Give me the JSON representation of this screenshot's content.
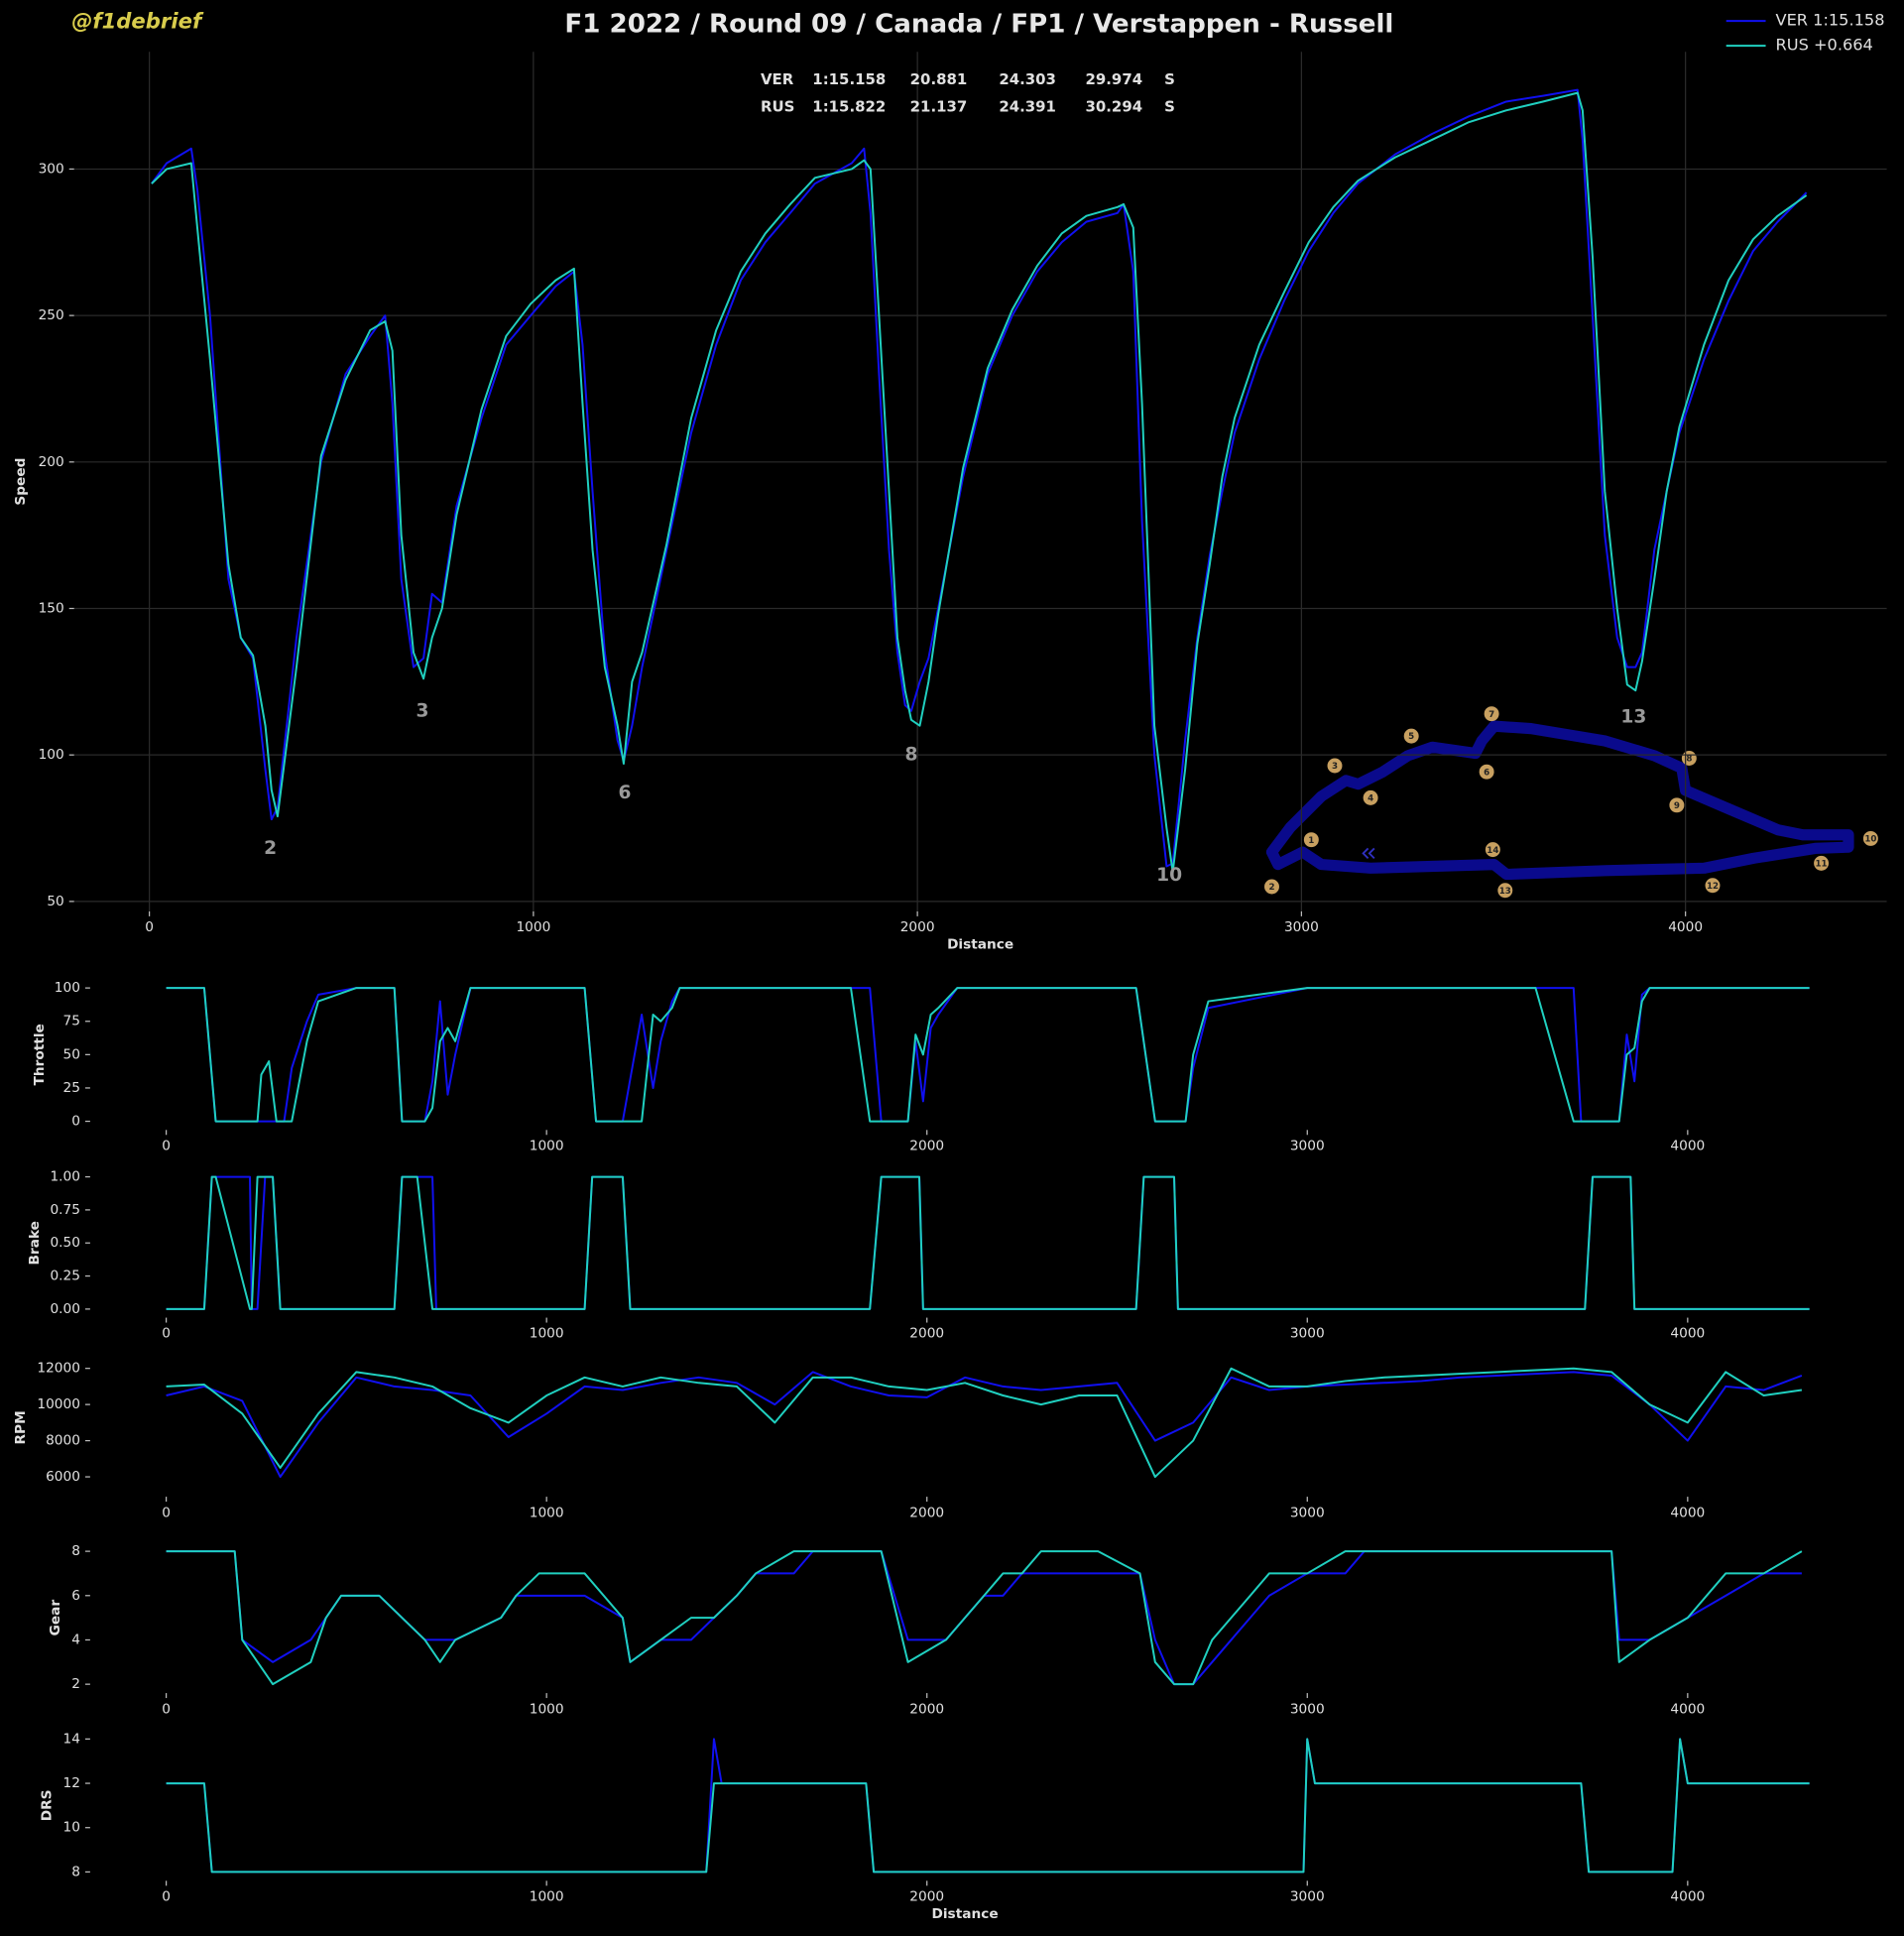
{
  "header": {
    "watermark": "@f1debrief",
    "title": "F1 2022 / Round 09 / Canada / FP1 / Verstappen - Russell"
  },
  "sector_table": {
    "rows": [
      [
        "VER",
        "1:15.158",
        "20.881",
        "24.303",
        "29.974",
        "S"
      ],
      [
        "RUS",
        "1:15.822",
        "21.137",
        "24.391",
        "30.294",
        "S"
      ]
    ]
  },
  "track_map": {
    "corners": [
      "1",
      "2",
      "3",
      "4",
      "5",
      "6",
      "7",
      "8",
      "9",
      "10",
      "11",
      "12",
      "13",
      "14"
    ]
  },
  "chart_data": [
    {
      "type": "line",
      "ylabel": "Speed",
      "xlabel": "Distance",
      "legend": "upper right",
      "grid": true,
      "xlim": [
        -196,
        4524
      ],
      "ylim": [
        46.6,
        340
      ],
      "xticks": [
        0,
        1000,
        2000,
        3000,
        4000
      ],
      "yticks": [
        50,
        100,
        150,
        200,
        250,
        300
      ],
      "x": [
        6,
        45,
        109,
        125,
        158,
        206,
        238,
        270,
        302,
        318,
        334,
        383,
        447,
        511,
        575,
        614,
        633,
        656,
        688,
        714,
        736,
        762,
        800,
        865,
        929,
        993,
        1058,
        1106,
        1128,
        1154,
        1186,
        1219,
        1235,
        1257,
        1283,
        1347,
        1411,
        1476,
        1540,
        1604,
        1669,
        1733,
        1829,
        1861,
        1878,
        1900,
        1926,
        1948,
        1968,
        1984,
        2006,
        2029,
        2054,
        2119,
        2183,
        2247,
        2312,
        2376,
        2440,
        2521,
        2537,
        2562,
        2585,
        2617,
        2649,
        2665,
        2697,
        2729,
        2761,
        2794,
        2826,
        2890,
        2955,
        3019,
        3083,
        3147,
        3244,
        3340,
        3436,
        3533,
        3629,
        3719,
        3732,
        3758,
        3790,
        3822,
        3848,
        3870,
        3887,
        3919,
        3951,
        3984,
        4048,
        4112,
        4176,
        4240,
        4315
      ],
      "series": [
        {
          "name": "VER 1:15.158",
          "color": "#1010f0",
          "values": [
            295,
            302,
            307,
            293,
            250,
            160,
            140,
            133,
            95,
            78,
            82,
            140,
            200,
            230,
            243,
            250,
            220,
            160,
            130,
            133,
            155,
            152,
            185,
            215,
            240,
            250,
            260,
            265,
            240,
            190,
            135,
            105,
            98,
            110,
            130,
            170,
            210,
            240,
            262,
            275,
            285,
            295,
            302,
            307,
            285,
            230,
            170,
            135,
            117,
            115,
            125,
            133,
            150,
            195,
            230,
            250,
            265,
            275,
            282,
            285,
            288,
            265,
            180,
            100,
            62,
            63,
            105,
            140,
            168,
            190,
            210,
            235,
            255,
            272,
            285,
            295,
            305,
            312,
            318,
            323,
            325,
            327,
            310,
            250,
            175,
            140,
            130,
            130,
            135,
            170,
            190,
            210,
            235,
            255,
            272,
            282,
            292
          ]
        },
        {
          "name": "RUS +0.664",
          "color": "#20d0c0",
          "values": [
            295,
            300,
            302,
            280,
            235,
            165,
            140,
            134,
            110,
            88,
            79,
            130,
            202,
            228,
            245,
            248,
            238,
            175,
            135,
            126,
            140,
            150,
            182,
            218,
            243,
            254,
            262,
            266,
            220,
            170,
            130,
            110,
            97,
            125,
            135,
            172,
            215,
            245,
            265,
            278,
            288,
            297,
            300,
            303,
            300,
            250,
            190,
            140,
            122,
            112,
            110,
            125,
            148,
            198,
            232,
            252,
            267,
            278,
            284,
            287,
            288,
            280,
            220,
            110,
            75,
            60,
            95,
            138,
            165,
            195,
            215,
            240,
            258,
            275,
            287,
            296,
            304,
            310,
            316,
            320,
            323,
            326,
            320,
            270,
            190,
            150,
            124,
            122,
            132,
            160,
            190,
            212,
            240,
            262,
            276,
            284,
            291
          ]
        }
      ],
      "annotations": [
        {
          "text": "2",
          "x": 315,
          "y": 68
        },
        {
          "text": "3",
          "x": 711,
          "y": 115
        },
        {
          "text": "6",
          "x": 1238,
          "y": 87
        },
        {
          "text": "8",
          "x": 1984,
          "y": 100
        },
        {
          "text": "10",
          "x": 2656,
          "y": 59
        },
        {
          "text": "13",
          "x": 3865,
          "y": 113
        }
      ]
    },
    {
      "type": "line",
      "ylabel": "Throttle",
      "xlim": [
        -200,
        4400
      ],
      "ylim": [
        -6.5,
        106.5
      ],
      "xticks": [
        0,
        1000,
        2000,
        3000,
        4000
      ],
      "yticks": [
        0,
        25,
        50,
        75,
        100
      ],
      "x": [
        0,
        100,
        130,
        180,
        240,
        250,
        270,
        290,
        310,
        330,
        370,
        400,
        500,
        600,
        620,
        680,
        700,
        720,
        740,
        760,
        800,
        1000,
        1100,
        1130,
        1200,
        1250,
        1280,
        1300,
        1330,
        1350,
        1400,
        1500,
        1800,
        1850,
        1880,
        1950,
        1970,
        1990,
        2010,
        2030,
        2080,
        2100,
        2500,
        2550,
        2600,
        2680,
        2700,
        2740,
        3000,
        3600,
        3700,
        3720,
        3820,
        3840,
        3860,
        3880,
        3900,
        4000,
        4320
      ],
      "series": [
        {
          "name": "VER 1:15.158",
          "color": "#1010f0",
          "values": [
            100,
            100,
            0,
            0,
            0,
            0,
            0,
            0,
            0,
            40,
            75,
            95,
            100,
            100,
            0,
            0,
            30,
            90,
            20,
            50,
            100,
            100,
            100,
            0,
            0,
            80,
            25,
            60,
            90,
            100,
            100,
            100,
            100,
            100,
            0,
            0,
            60,
            15,
            70,
            80,
            100,
            100,
            100,
            100,
            0,
            0,
            40,
            85,
            100,
            100,
            100,
            0,
            0,
            65,
            30,
            95,
            100,
            100,
            100
          ]
        },
        {
          "name": "RUS +0.664",
          "color": "#20d0c0",
          "values": [
            100,
            100,
            0,
            0,
            0,
            35,
            45,
            0,
            0,
            0,
            60,
            90,
            100,
            100,
            0,
            0,
            10,
            60,
            70,
            60,
            100,
            100,
            100,
            0,
            0,
            0,
            80,
            75,
            85,
            100,
            100,
            100,
            100,
            0,
            0,
            0,
            65,
            50,
            80,
            85,
            100,
            100,
            100,
            100,
            0,
            0,
            50,
            90,
            100,
            100,
            0,
            0,
            0,
            50,
            55,
            90,
            100,
            100,
            100
          ]
        }
      ]
    },
    {
      "type": "line",
      "ylabel": "Brake",
      "xlim": [
        -200,
        4400
      ],
      "ylim": [
        -0.065,
        1.065
      ],
      "xticks": [
        0,
        1000,
        2000,
        3000,
        4000
      ],
      "yticks": [
        {
          "value": 0,
          "label": "0.00"
        },
        {
          "value": 0.25,
          "label": "0.25"
        },
        {
          "value": 0.5,
          "label": "0.50"
        },
        {
          "value": 0.75,
          "label": "0.75"
        },
        {
          "value": 1,
          "label": "1.00"
        }
      ],
      "x": [
        0,
        100,
        120,
        130,
        220,
        225,
        240,
        260,
        280,
        300,
        310,
        600,
        620,
        660,
        700,
        710,
        1100,
        1120,
        1200,
        1220,
        1850,
        1880,
        1980,
        1990,
        2550,
        2570,
        2650,
        2660,
        3730,
        3750,
        3850,
        3860,
        4320
      ],
      "series": [
        {
          "name": "VER 1:15.158",
          "color": "#1010f0",
          "values": [
            0,
            0,
            1,
            1,
            1,
            0,
            0,
            1,
            1,
            0,
            0,
            0,
            1,
            1,
            1,
            0,
            0,
            1,
            1,
            0,
            0,
            1,
            1,
            0,
            0,
            1,
            1,
            0,
            0,
            1,
            1,
            0,
            0
          ]
        },
        {
          "name": "RUS +0.664",
          "color": "#20d0c0",
          "values": [
            0,
            0,
            1,
            1,
            0,
            0,
            1,
            1,
            1,
            0,
            0,
            0,
            1,
            1,
            0,
            0,
            0,
            1,
            1,
            0,
            0,
            1,
            1,
            0,
            0,
            1,
            1,
            0,
            0,
            1,
            1,
            0,
            0
          ]
        }
      ]
    },
    {
      "type": "line",
      "ylabel": "RPM",
      "xlim": [
        -200,
        4400
      ],
      "ylim": [
        4900,
        12550
      ],
      "xticks": [
        0,
        1000,
        2000,
        3000,
        4000
      ],
      "yticks": [
        6000,
        8000,
        10000,
        12000
      ],
      "x": [
        0,
        100,
        200,
        300,
        400,
        500,
        600,
        700,
        800,
        900,
        1000,
        1100,
        1200,
        1300,
        1400,
        1500,
        1600,
        1700,
        1800,
        1900,
        2000,
        2100,
        2200,
        2300,
        2400,
        2500,
        2600,
        2700,
        2800,
        2900,
        3000,
        3100,
        3200,
        3300,
        3400,
        3500,
        3600,
        3700,
        3800,
        3900,
        4000,
        4100,
        4200,
        4300
      ],
      "series": [
        {
          "name": "VER 1:15.158",
          "color": "#1010f0",
          "values": [
            10500,
            11000,
            10200,
            6000,
            9000,
            11500,
            11000,
            10800,
            10500,
            8200,
            9500,
            11000,
            10800,
            11200,
            11500,
            11200,
            10000,
            11800,
            11000,
            10500,
            10400,
            11500,
            11000,
            10800,
            11000,
            11200,
            8000,
            9000,
            11500,
            10800,
            11000,
            11100,
            11200,
            11300,
            11500,
            11600,
            11700,
            11800,
            11600,
            10000,
            8000,
            11000,
            10800,
            11600
          ]
        },
        {
          "name": "RUS +0.664",
          "color": "#20d0c0",
          "values": [
            11000,
            11100,
            9500,
            6500,
            9500,
            11800,
            11500,
            11000,
            9800,
            9000,
            10500,
            11500,
            11000,
            11500,
            11200,
            11000,
            9000,
            11500,
            11500,
            11000,
            10800,
            11200,
            10500,
            10000,
            10500,
            10500,
            6000,
            8000,
            12000,
            11000,
            11000,
            11300,
            11500,
            11600,
            11700,
            11800,
            11900,
            12000,
            11800,
            10000,
            9000,
            11800,
            10500,
            10800
          ]
        }
      ]
    },
    {
      "type": "line",
      "ylabel": "Gear",
      "xlim": [
        -200,
        4400
      ],
      "ylim": [
        1.6,
        8.4
      ],
      "xticks": [
        0,
        1000,
        2000,
        3000,
        4000
      ],
      "yticks": [
        2,
        4,
        6,
        8
      ],
      "x": [
        0,
        180,
        200,
        280,
        380,
        420,
        460,
        560,
        680,
        720,
        760,
        880,
        920,
        980,
        1000,
        1100,
        1200,
        1220,
        1300,
        1380,
        1440,
        1500,
        1550,
        1650,
        1700,
        1880,
        1950,
        2050,
        2100,
        2150,
        2200,
        2250,
        2300,
        2450,
        2560,
        2600,
        2650,
        2700,
        2750,
        2800,
        2850,
        2900,
        3000,
        3100,
        3150,
        3800,
        3820,
        3900,
        4000,
        4100,
        4200,
        4300
      ],
      "series": [
        {
          "name": "VER 1:15.158",
          "color": "#1010f0",
          "values": [
            8,
            8,
            4,
            3,
            4,
            5,
            6,
            6,
            4,
            4,
            4,
            5,
            6,
            6,
            6,
            6,
            5,
            3,
            4,
            4,
            5,
            6,
            7,
            7,
            8,
            8,
            4,
            4,
            5,
            6,
            6,
            7,
            7,
            7,
            7,
            4,
            2,
            2,
            3,
            4,
            5,
            6,
            7,
            7,
            8,
            8,
            4,
            4,
            5,
            6,
            7,
            7
          ]
        },
        {
          "name": "RUS +0.664",
          "color": "#20d0c0",
          "values": [
            8,
            8,
            4,
            2,
            3,
            5,
            6,
            6,
            4,
            3,
            4,
            5,
            6,
            7,
            7,
            7,
            5,
            3,
            4,
            5,
            5,
            6,
            7,
            8,
            8,
            8,
            3,
            4,
            5,
            6,
            7,
            7,
            8,
            8,
            7,
            3,
            2,
            2,
            4,
            5,
            6,
            7,
            7,
            8,
            8,
            8,
            3,
            4,
            5,
            7,
            7,
            8
          ]
        }
      ]
    },
    {
      "type": "line",
      "ylabel": "DRS",
      "xlabel": "Distance",
      "xlim": [
        -200,
        4400
      ],
      "ylim": [
        7.6,
        14.4
      ],
      "xticks": [
        0,
        1000,
        2000,
        3000,
        4000
      ],
      "yticks": [
        8,
        10,
        12,
        14
      ],
      "x": [
        0,
        100,
        120,
        1420,
        1440,
        1460,
        1840,
        1860,
        2990,
        3000,
        3020,
        3720,
        3740,
        3960,
        3980,
        4000,
        4320
      ],
      "series": [
        {
          "name": "VER 1:15.158",
          "color": "#1010f0",
          "values": [
            12,
            12,
            8,
            8,
            14,
            12,
            12,
            8,
            8,
            14,
            12,
            12,
            8,
            8,
            14,
            12,
            12
          ]
        },
        {
          "name": "RUS +0.664",
          "color": "#20d0c0",
          "values": [
            12,
            12,
            8,
            8,
            12,
            12,
            12,
            8,
            8,
            14,
            12,
            12,
            8,
            8,
            14,
            12,
            12
          ]
        }
      ]
    }
  ]
}
